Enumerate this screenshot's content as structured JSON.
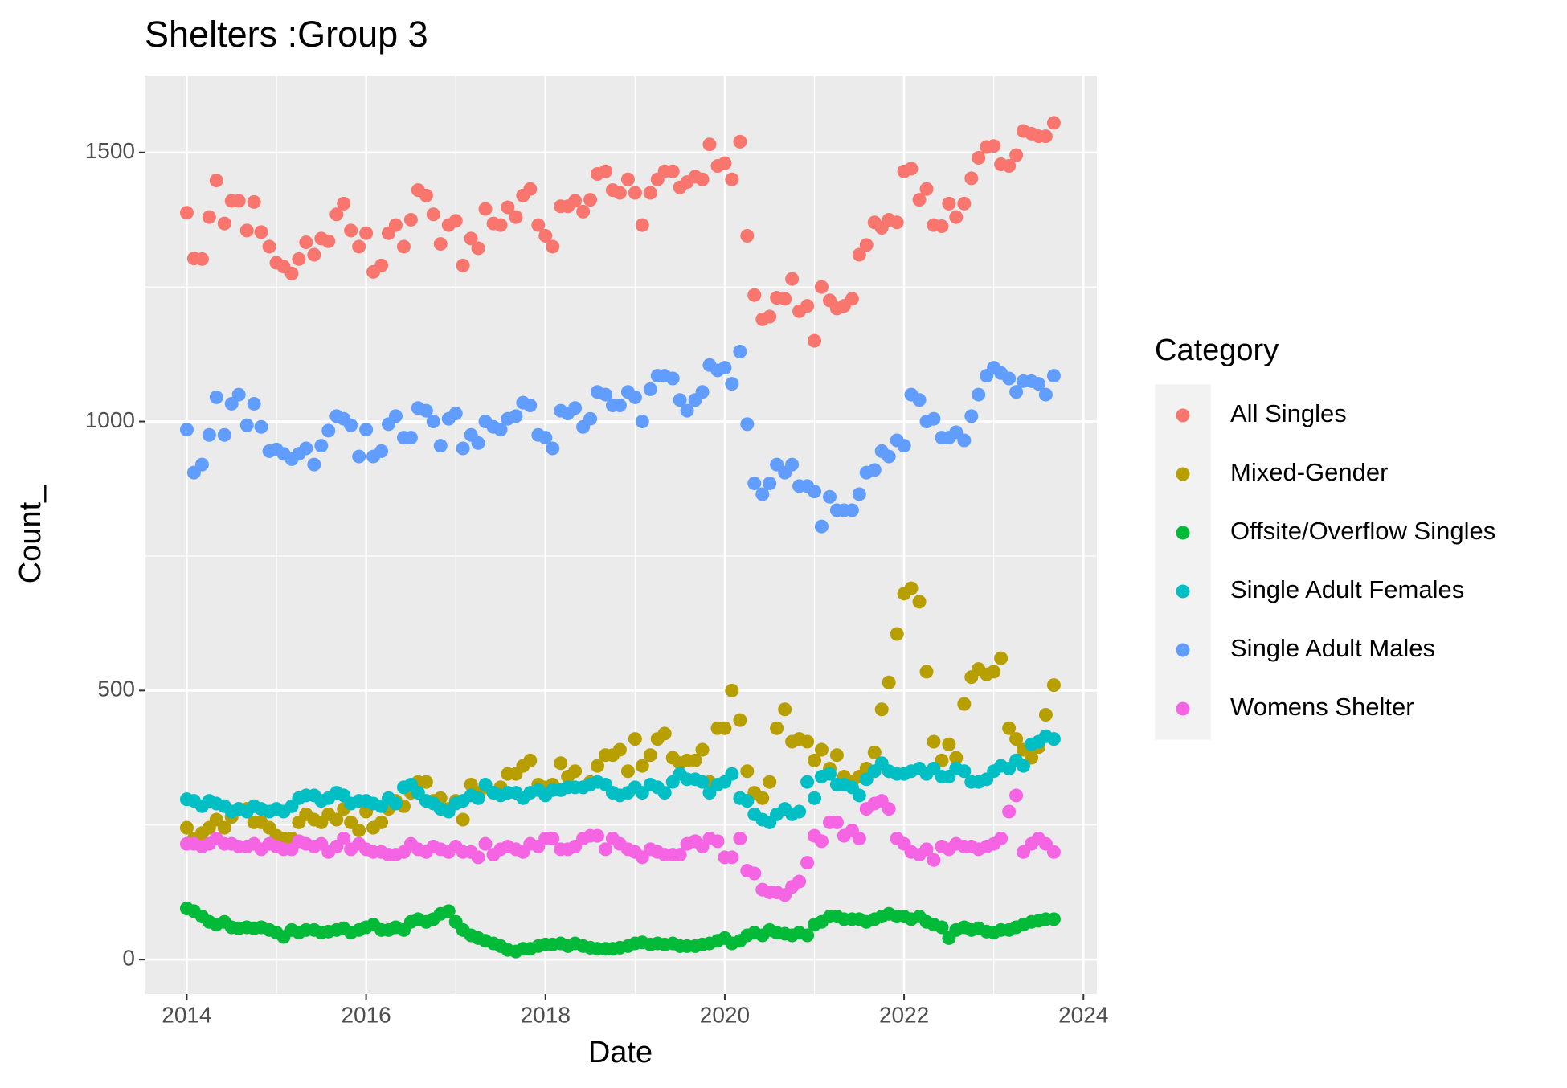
{
  "chart_data": {
    "type": "scatter",
    "title": "Shelters :Group 3",
    "x_label": "Date",
    "y_label": "Count_",
    "legend_title": "Category",
    "legend": "right",
    "grid": true,
    "xlim": [
      2013.53,
      2024.15
    ],
    "xticks": [
      2014,
      2016,
      2018,
      2020,
      2022,
      2024
    ],
    "ylim": [
      -64,
      1643
    ],
    "yticks": [
      0,
      500,
      1000,
      1500
    ],
    "x": [
      2014,
      2014.08,
      2014.17,
      2014.25,
      2014.33,
      2014.42,
      2014.5,
      2014.58,
      2014.67,
      2014.75,
      2014.83,
      2014.92,
      2015,
      2015.08,
      2015.17,
      2015.25,
      2015.33,
      2015.42,
      2015.5,
      2015.58,
      2015.67,
      2015.75,
      2015.83,
      2015.92,
      2016,
      2016.08,
      2016.17,
      2016.25,
      2016.33,
      2016.42,
      2016.5,
      2016.58,
      2016.67,
      2016.75,
      2016.83,
      2016.92,
      2017,
      2017.08,
      2017.17,
      2017.25,
      2017.33,
      2017.42,
      2017.5,
      2017.58,
      2017.67,
      2017.75,
      2017.83,
      2017.92,
      2018,
      2018.08,
      2018.17,
      2018.25,
      2018.33,
      2018.42,
      2018.5,
      2018.58,
      2018.67,
      2018.75,
      2018.83,
      2018.92,
      2019,
      2019.08,
      2019.17,
      2019.25,
      2019.33,
      2019.42,
      2019.5,
      2019.58,
      2019.67,
      2019.75,
      2019.83,
      2019.92,
      2020,
      2020.08,
      2020.17,
      2020.25,
      2020.33,
      2020.42,
      2020.5,
      2020.58,
      2020.67,
      2020.75,
      2020.83,
      2020.92,
      2021,
      2021.08,
      2021.17,
      2021.25,
      2021.33,
      2021.42,
      2021.5,
      2021.58,
      2021.67,
      2021.75,
      2021.83,
      2021.92,
      2022,
      2022.08,
      2022.17,
      2022.25,
      2022.33,
      2022.42,
      2022.5,
      2022.58,
      2022.67,
      2022.75,
      2022.83,
      2022.92,
      2023,
      2023.08,
      2023.17,
      2023.25,
      2023.33,
      2023.42,
      2023.5,
      2023.58,
      2023.67
    ],
    "series": [
      {
        "name": "All Singles",
        "color": "#F8766D",
        "values": [
          1388,
          1303,
          1302,
          1380,
          1448,
          1368,
          1410,
          1410,
          1355,
          1408,
          1352,
          1325,
          1295,
          1288,
          1275,
          1302,
          1333,
          1310,
          1340,
          1335,
          1385,
          1405,
          1355,
          1325,
          1350,
          1278,
          1290,
          1350,
          1365,
          1325,
          1375,
          1430,
          1420,
          1385,
          1330,
          1365,
          1373,
          1290,
          1340,
          1322,
          1395,
          1368,
          1365,
          1398,
          1380,
          1420,
          1432,
          1365,
          1345,
          1325,
          1400,
          1400,
          1410,
          1390,
          1412,
          1460,
          1465,
          1430,
          1425,
          1450,
          1425,
          1365,
          1425,
          1450,
          1465,
          1465,
          1435,
          1445,
          1455,
          1450,
          1515,
          1475,
          1480,
          1450,
          1520,
          1345,
          1235,
          1190,
          1195,
          1230,
          1228,
          1265,
          1205,
          1215,
          1150,
          1250,
          1225,
          1210,
          1215,
          1228,
          1310,
          1328,
          1370,
          1360,
          1375,
          1370,
          1465,
          1470,
          1412,
          1432,
          1365,
          1363,
          1405,
          1380,
          1405,
          1452,
          1490,
          1510,
          1512,
          1478,
          1475,
          1495,
          1540,
          1535,
          1530,
          1530,
          1555
        ]
      },
      {
        "name": "Mixed-Gender",
        "color": "#B79F00",
        "values": [
          245,
          225,
          235,
          245,
          260,
          245,
          265,
          280,
          280,
          255,
          255,
          245,
          230,
          225,
          225,
          255,
          270,
          260,
          255,
          270,
          260,
          280,
          255,
          240,
          275,
          245,
          255,
          280,
          295,
          285,
          310,
          330,
          330,
          295,
          300,
          280,
          295,
          260,
          325,
          310,
          320,
          310,
          320,
          345,
          345,
          360,
          370,
          325,
          320,
          325,
          365,
          340,
          350,
          320,
          330,
          360,
          380,
          380,
          390,
          350,
          410,
          360,
          380,
          410,
          420,
          375,
          365,
          370,
          370,
          390,
          330,
          430,
          430,
          500,
          445,
          350,
          310,
          300,
          330,
          430,
          465,
          405,
          410,
          405,
          370,
          390,
          355,
          380,
          340,
          330,
          340,
          355,
          385,
          465,
          515,
          605,
          680,
          690,
          665,
          535,
          405,
          370,
          400,
          375,
          475,
          525,
          540,
          530,
          535,
          560,
          430,
          410,
          390,
          375,
          395,
          455,
          510
        ]
      },
      {
        "name": "Offsite/Overflow Singles",
        "color": "#00BA38",
        "values": [
          95,
          90,
          80,
          70,
          65,
          70,
          60,
          58,
          60,
          58,
          60,
          55,
          50,
          42,
          55,
          50,
          55,
          55,
          50,
          52,
          55,
          58,
          50,
          55,
          60,
          65,
          55,
          55,
          60,
          55,
          70,
          75,
          70,
          75,
          85,
          90,
          70,
          55,
          45,
          40,
          35,
          30,
          25,
          18,
          15,
          20,
          20,
          25,
          28,
          28,
          30,
          25,
          30,
          25,
          22,
          20,
          20,
          20,
          22,
          25,
          30,
          32,
          28,
          30,
          28,
          30,
          25,
          25,
          25,
          28,
          30,
          35,
          40,
          30,
          35,
          45,
          50,
          45,
          55,
          50,
          48,
          45,
          50,
          45,
          65,
          70,
          80,
          80,
          75,
          75,
          75,
          70,
          75,
          80,
          85,
          80,
          80,
          75,
          80,
          70,
          65,
          60,
          40,
          55,
          60,
          55,
          58,
          52,
          50,
          55,
          55,
          60,
          65,
          70,
          72,
          75,
          75
        ]
      },
      {
        "name": "Single Adult Females",
        "color": "#00BFC4",
        "values": [
          298,
          295,
          285,
          295,
          290,
          285,
          275,
          280,
          275,
          285,
          280,
          275,
          280,
          275,
          285,
          300,
          305,
          305,
          295,
          300,
          310,
          305,
          290,
          295,
          295,
          290,
          285,
          300,
          290,
          320,
          325,
          310,
          295,
          290,
          280,
          275,
          290,
          295,
          305,
          300,
          325,
          310,
          305,
          310,
          310,
          300,
          310,
          315,
          305,
          315,
          315,
          320,
          320,
          320,
          325,
          330,
          325,
          310,
          305,
          310,
          320,
          310,
          325,
          320,
          310,
          330,
          345,
          335,
          335,
          330,
          310,
          325,
          330,
          345,
          300,
          295,
          270,
          260,
          255,
          270,
          280,
          270,
          275,
          330,
          300,
          340,
          345,
          325,
          325,
          320,
          305,
          335,
          350,
          365,
          350,
          345,
          345,
          350,
          355,
          345,
          355,
          340,
          340,
          355,
          350,
          330,
          330,
          335,
          350,
          360,
          355,
          370,
          360,
          400,
          405,
          415,
          410
        ]
      },
      {
        "name": "Single Adult Males",
        "color": "#619CFF",
        "values": [
          985,
          905,
          920,
          975,
          1045,
          975,
          1033,
          1050,
          993,
          1033,
          990,
          945,
          948,
          940,
          930,
          940,
          950,
          920,
          955,
          983,
          1010,
          1005,
          993,
          935,
          985,
          935,
          945,
          995,
          1010,
          970,
          970,
          1025,
          1020,
          1000,
          955,
          1005,
          1015,
          950,
          975,
          960,
          1000,
          990,
          985,
          1005,
          1010,
          1035,
          1030,
          975,
          970,
          950,
          1020,
          1015,
          1025,
          990,
          1005,
          1055,
          1050,
          1030,
          1030,
          1055,
          1045,
          1000,
          1060,
          1085,
          1085,
          1080,
          1040,
          1020,
          1040,
          1055,
          1105,
          1095,
          1100,
          1070,
          1130,
          995,
          885,
          865,
          885,
          920,
          905,
          920,
          880,
          880,
          870,
          805,
          860,
          835,
          835,
          835,
          865,
          905,
          910,
          945,
          935,
          965,
          955,
          1050,
          1040,
          1000,
          1005,
          970,
          970,
          980,
          965,
          1010,
          1050,
          1085,
          1100,
          1090,
          1080,
          1055,
          1075,
          1075,
          1070,
          1050,
          1085
        ]
      },
      {
        "name": "Womens Shelter",
        "color": "#F564E3",
        "values": [
          215,
          215,
          210,
          215,
          225,
          215,
          215,
          210,
          210,
          215,
          205,
          215,
          210,
          205,
          205,
          220,
          215,
          210,
          215,
          200,
          210,
          225,
          205,
          215,
          205,
          200,
          200,
          195,
          195,
          200,
          215,
          205,
          200,
          210,
          205,
          200,
          210,
          200,
          200,
          190,
          215,
          195,
          205,
          210,
          205,
          200,
          215,
          210,
          225,
          225,
          205,
          205,
          210,
          225,
          230,
          230,
          205,
          225,
          215,
          205,
          200,
          190,
          205,
          200,
          195,
          195,
          195,
          215,
          220,
          210,
          225,
          220,
          190,
          190,
          225,
          165,
          160,
          130,
          125,
          125,
          120,
          135,
          145,
          180,
          230,
          220,
          255,
          255,
          230,
          240,
          225,
          280,
          290,
          295,
          280,
          225,
          215,
          200,
          195,
          205,
          185,
          210,
          205,
          215,
          210,
          210,
          205,
          210,
          215,
          225,
          275,
          305,
          200,
          215,
          225,
          215,
          200
        ]
      }
    ]
  }
}
